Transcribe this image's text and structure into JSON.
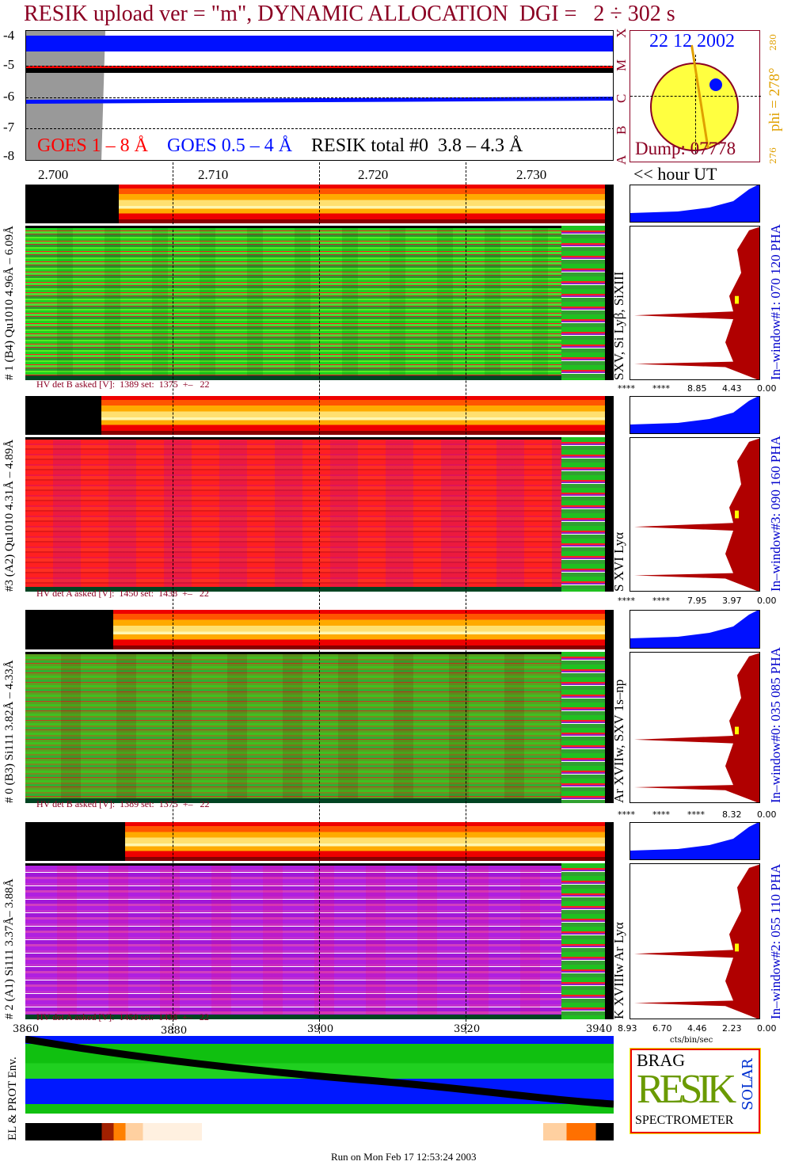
{
  "title": "RESIK upload ver = \"m\", DYNAMIC ALLOCATION  DGI =   2 ÷ 302 s",
  "goes": {
    "yticks": [
      "-4",
      "-5",
      "-6",
      "-7",
      "-8"
    ],
    "classes": [
      "X",
      "M",
      "C",
      "B",
      "A"
    ],
    "label1": "GOES",
    "label1b": "1 – 8 Å",
    "label2": "GOES 0.5 – 4 Å",
    "label3": "RESIK total #0  3.8 – 4.3 Å"
  },
  "sun": {
    "date": "22 12 2002",
    "dump": "Dump: 07778",
    "phi": "phi = 278°",
    "phi_hi": "280",
    "phi_lo": "276"
  },
  "time_axis": {
    "ticks": [
      "2.700",
      "2.710",
      "2.720",
      "2.730"
    ],
    "unit": "<< hour UT"
  },
  "panels": [
    {
      "left_label": "# 1 (B4) Qu1010 4.96Å – 6.09Å",
      "lines": "SXV, Si Lyβ, SiXIII",
      "hv": "HV det B asked [V]:  1389 set:  1375  +–   22",
      "window": "In–window#1:  070 120 PHA",
      "hist_ticks": [
        "****",
        "****",
        "8.85",
        "4.43",
        "0.00"
      ]
    },
    {
      "left_label": "#3 (A2) Qu1010  4.31Å – 4.89Å",
      "lines": "S XVI Lyα",
      "hv": "HV det A asked [V]:  1450 set:  1438  +–   22",
      "window": "In–window#3:  090 160 PHA",
      "hist_ticks": [
        "****",
        "****",
        "7.95",
        "3.97",
        "0.00"
      ]
    },
    {
      "left_label": "# 0 (B3) Si111  3.82Å – 4.33Å",
      "lines": "Ar XVIIw,  SXV 1s–np",
      "hv": "HV det B asked [V]:  1389 set:  1375  +–   22",
      "window": "In–window#0:  035 085 PHA",
      "hist_ticks": [
        "****",
        "****",
        "****",
        "8.32",
        "0.00"
      ]
    },
    {
      "left_label": "# 2 (A1) Si111  3.37Å– 3.88Å",
      "lines": "K XVIIIw  Ar Lyα",
      "hv": "HV det A asked [V]:  1450 set:  1438  +–   22",
      "window": "In–window#2:  055 110 PHA",
      "hist_ticks": [
        "8.93",
        "6.70",
        "4.46",
        "2.23",
        "0.00"
      ]
    }
  ],
  "hist_unit": "cts/bin/sec",
  "bottom_axis": {
    "ticks": [
      "3860",
      "3880",
      "3900",
      "3920",
      "3940"
    ]
  },
  "env_label": "EL & PROT Env.",
  "logo": {
    "top": "BRAG",
    "main": "RESIK",
    "side": "SOLAR",
    "bottom": "SPECTROMETER"
  },
  "footer": "Run on Mon Feb 17 12:53:24 2003",
  "chart_data": {
    "type": "heatmap",
    "title": "RESIK upload ver = \"m\", DYNAMIC ALLOCATION  DGI =   2 ÷ 302 s",
    "xlabel": "hour UT",
    "xlim": [
      2.697,
      2.735
    ],
    "goes_ylim": [
      -8,
      -4
    ],
    "goes_series": [
      {
        "name": "GOES 1 – 8 Å",
        "approx_log_flux": -5.1
      },
      {
        "name": "GOES 0.5 – 4 Å",
        "approx_log_flux": -6.1
      }
    ],
    "bottom_xlim": [
      3860,
      3940
    ]
  },
  "colors": {
    "title": "#8b0023",
    "goes_long": "#ff0000",
    "goes_short": "#0000ff",
    "window": "#0000cc",
    "phi": "#e0a000"
  }
}
